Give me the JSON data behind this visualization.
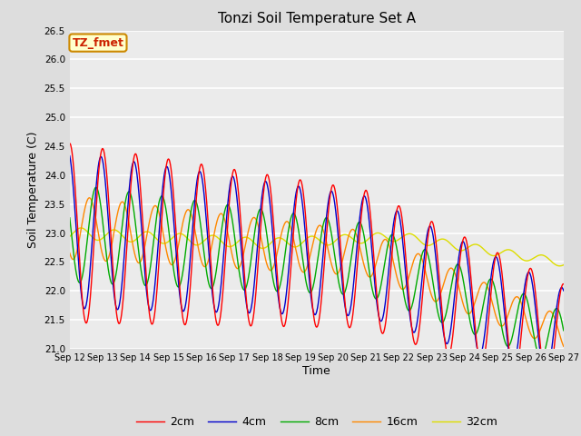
{
  "title": "Tonzi Soil Temperature Set A",
  "xlabel": "Time",
  "ylabel": "Soil Temperature (C)",
  "ylim": [
    21.0,
    26.5
  ],
  "yticks": [
    21.0,
    21.5,
    22.0,
    22.5,
    23.0,
    23.5,
    24.0,
    24.5,
    25.0,
    25.5,
    26.0,
    26.5
  ],
  "colors": {
    "2cm": "#ff0000",
    "4cm": "#0000cc",
    "8cm": "#00aa00",
    "16cm": "#ff8800",
    "32cm": "#dddd00"
  },
  "legend_label": "TZ_fmet",
  "legend_box_facecolor": "#ffffcc",
  "legend_box_edge": "#cc8800",
  "background_color": "#dddddd",
  "plot_bg_color": "#ebebeb",
  "start_day": 12,
  "end_day": 27,
  "points_per_day": 96
}
